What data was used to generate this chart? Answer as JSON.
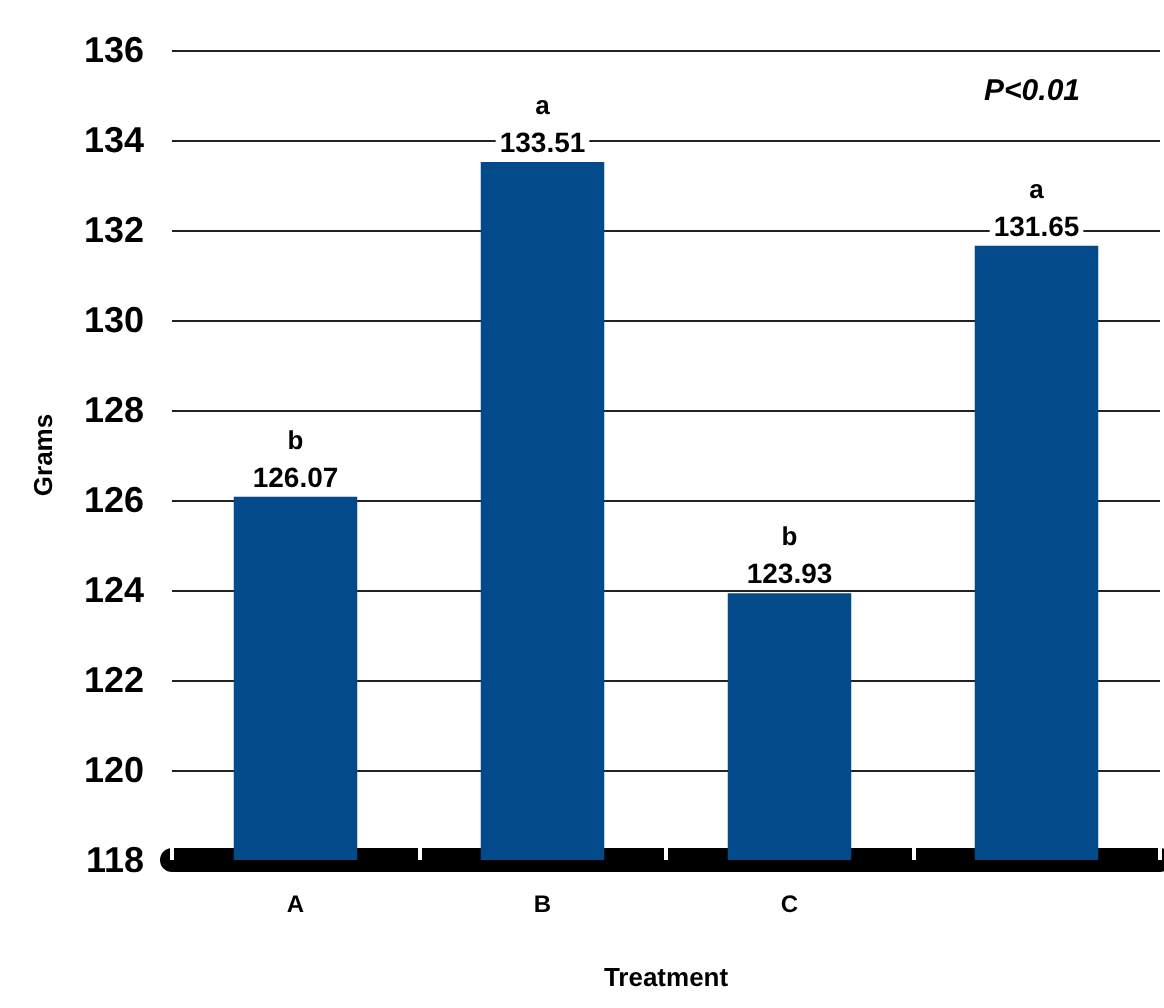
{
  "chart_data": {
    "type": "bar",
    "xlabel": "Treatment",
    "ylabel": "Grams",
    "categories": [
      "A",
      "B",
      "C",
      null
    ],
    "values": [
      126.07,
      133.51,
      123.93,
      131.65
    ],
    "color": "#034a8a",
    "ylim": [
      118,
      136
    ],
    "yticks": [
      118,
      120,
      122,
      124,
      126,
      128,
      130,
      132,
      134,
      136
    ],
    "grid": "y",
    "data_labels": true,
    "annotations": [
      {
        "text": "b",
        "x": "A",
        "y": 126.07
      },
      {
        "text": "a",
        "x": "B",
        "y": 133.51
      },
      {
        "text": "b",
        "x": "C",
        "y": 123.93
      },
      {
        "text": "a",
        "y": 131.65
      },
      "P<0.01"
    ]
  }
}
